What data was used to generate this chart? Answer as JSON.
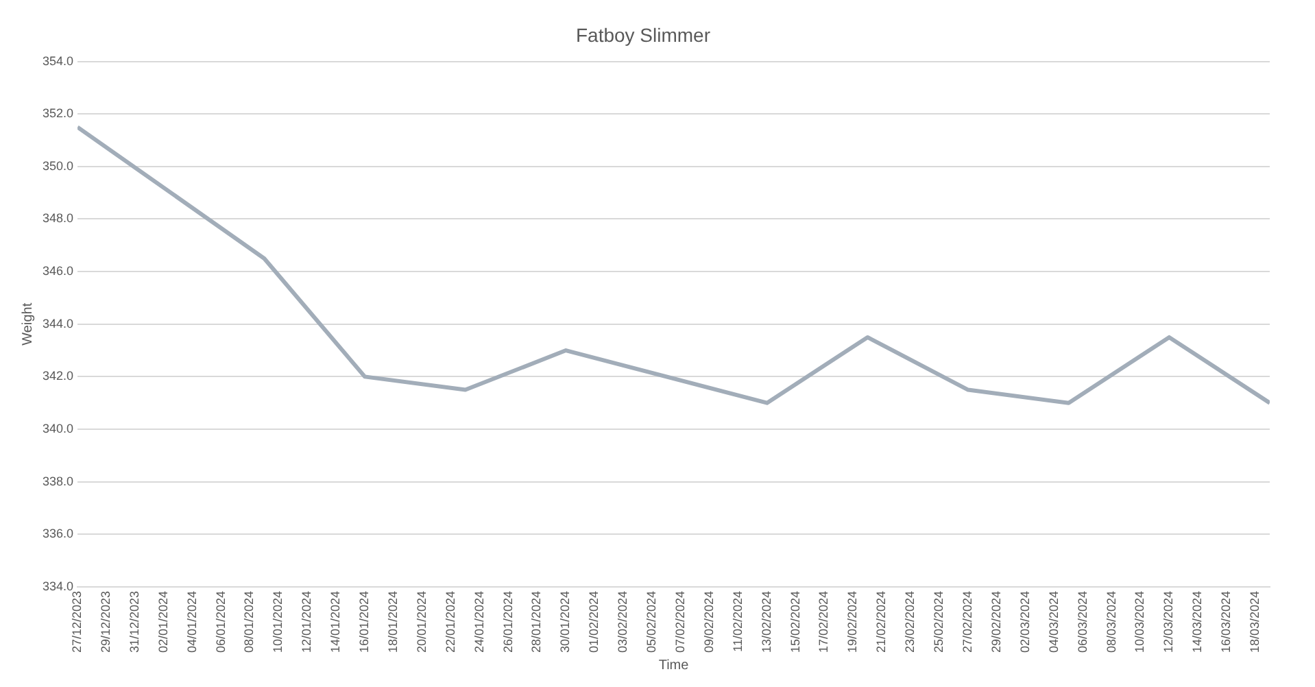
{
  "chart_data": {
    "type": "line",
    "title": "Fatboy Slimmer",
    "xlabel": "Time",
    "ylabel": "Weight",
    "x": [
      "2023-12-27",
      "2024-01-09",
      "2024-01-16",
      "2024-01-23",
      "2024-01-30",
      "2024-02-13",
      "2024-02-20",
      "2024-02-27",
      "2024-03-05",
      "2024-03-12",
      "2024-03-19"
    ],
    "series": [
      {
        "color": "#a2adb9",
        "values": [
          351.5,
          346.5,
          342,
          341.5,
          343,
          341,
          343.5,
          341.5,
          341,
          343.5,
          341
        ]
      }
    ],
    "xlim": [
      "2023-12-27",
      "2024-03-19"
    ],
    "xticks": [
      {
        "value": "2023-12-27",
        "label": "27/12/2023"
      },
      {
        "value": "2023-12-29",
        "label": "29/12/2023"
      },
      {
        "value": "2023-12-31",
        "label": "31/12/2023"
      },
      {
        "value": "2024-01-02",
        "label": "02/01/2024"
      },
      {
        "value": "2024-01-04",
        "label": "04/01/2024"
      },
      {
        "value": "2024-01-06",
        "label": "06/01/2024"
      },
      {
        "value": "2024-01-08",
        "label": "08/01/2024"
      },
      {
        "value": "2024-01-10",
        "label": "10/01/2024"
      },
      {
        "value": "2024-01-12",
        "label": "12/01/2024"
      },
      {
        "value": "2024-01-14",
        "label": "14/01/2024"
      },
      {
        "value": "2024-01-16",
        "label": "16/01/2024"
      },
      {
        "value": "2024-01-18",
        "label": "18/01/2024"
      },
      {
        "value": "2024-01-20",
        "label": "20/01/2024"
      },
      {
        "value": "2024-01-22",
        "label": "22/01/2024"
      },
      {
        "value": "2024-01-24",
        "label": "24/01/2024"
      },
      {
        "value": "2024-01-26",
        "label": "26/01/2024"
      },
      {
        "value": "2024-01-28",
        "label": "28/01/2024"
      },
      {
        "value": "2024-01-30",
        "label": "30/01/2024"
      },
      {
        "value": "2024-02-01",
        "label": "01/02/2024"
      },
      {
        "value": "2024-02-03",
        "label": "03/02/2024"
      },
      {
        "value": "2024-02-05",
        "label": "05/02/2024"
      },
      {
        "value": "2024-02-07",
        "label": "07/02/2024"
      },
      {
        "value": "2024-02-09",
        "label": "09/02/2024"
      },
      {
        "value": "2024-02-11",
        "label": "11/02/2024"
      },
      {
        "value": "2024-02-13",
        "label": "13/02/2024"
      },
      {
        "value": "2024-02-15",
        "label": "15/02/2024"
      },
      {
        "value": "2024-02-17",
        "label": "17/02/2024"
      },
      {
        "value": "2024-02-19",
        "label": "19/02/2024"
      },
      {
        "value": "2024-02-21",
        "label": "21/02/2024"
      },
      {
        "value": "2024-02-23",
        "label": "23/02/2024"
      },
      {
        "value": "2024-02-25",
        "label": "25/02/2024"
      },
      {
        "value": "2024-02-27",
        "label": "27/02/2024"
      },
      {
        "value": "2024-02-29",
        "label": "29/02/2024"
      },
      {
        "value": "2024-03-02",
        "label": "02/03/2024"
      },
      {
        "value": "2024-03-04",
        "label": "04/03/2024"
      },
      {
        "value": "2024-03-06",
        "label": "06/03/2024"
      },
      {
        "value": "2024-03-08",
        "label": "08/03/2024"
      },
      {
        "value": "2024-03-10",
        "label": "10/03/2024"
      },
      {
        "value": "2024-03-12",
        "label": "12/03/2024"
      },
      {
        "value": "2024-03-14",
        "label": "14/03/2024"
      },
      {
        "value": "2024-03-16",
        "label": "16/03/2024"
      },
      {
        "value": "2024-03-18",
        "label": "18/03/2024"
      }
    ],
    "ylim": [
      334,
      354
    ],
    "yticks": [
      {
        "value": 334,
        "label": "334.0"
      },
      {
        "value": 336,
        "label": "336.0"
      },
      {
        "value": 338,
        "label": "338.0"
      },
      {
        "value": 340,
        "label": "340.0"
      },
      {
        "value": 342,
        "label": "342.0"
      },
      {
        "value": 344,
        "label": "344.0"
      },
      {
        "value": 346,
        "label": "346.0"
      },
      {
        "value": 348,
        "label": "348.0"
      },
      {
        "value": 350,
        "label": "350.0"
      },
      {
        "value": 352,
        "label": "352.0"
      },
      {
        "value": 354,
        "label": "354.0"
      }
    ],
    "grid": "y",
    "legend": false,
    "marker": "none",
    "line_style": "solid"
  }
}
